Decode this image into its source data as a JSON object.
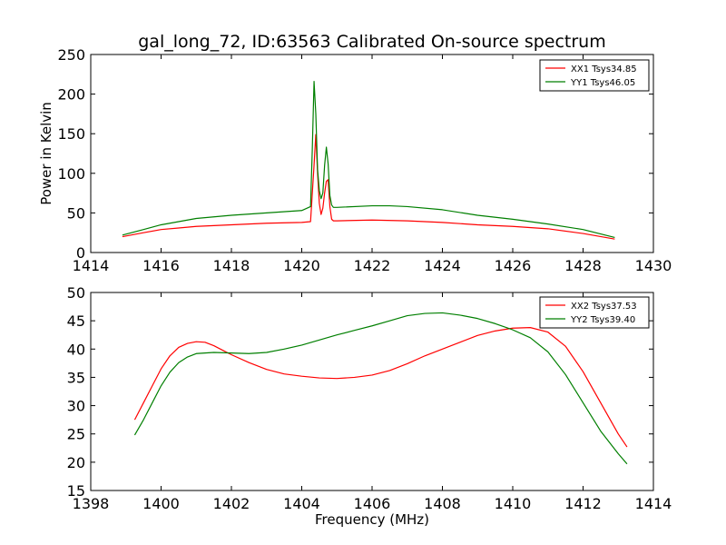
{
  "title": "gal_long_72, ID:63563 Calibrated On-source spectrum",
  "colors": {
    "xx": "#ff0000",
    "yy": "#007f00",
    "frame": "#000000",
    "background": "#ffffff"
  },
  "chart_data": [
    {
      "type": "line",
      "title": "gal_long_72, ID:63563 Calibrated On-source spectrum",
      "xlabel": "",
      "ylabel": "Power in Kelvin",
      "xlim": [
        1414,
        1430
      ],
      "ylim": [
        0,
        250
      ],
      "xticks": [
        "1414",
        "1416",
        "1418",
        "1420",
        "1422",
        "1424",
        "1426",
        "1428",
        "1430"
      ],
      "yticks": [
        "0",
        "50",
        "100",
        "150",
        "200",
        "250"
      ],
      "grid": false,
      "legend_position": "top-right",
      "series": [
        {
          "name": "XX1 Tsys34.85",
          "color": "#ff0000",
          "x": [
            1414.9,
            1415.5,
            1416,
            1416.5,
            1417,
            1418,
            1419,
            1420,
            1420.25,
            1420.35,
            1420.4,
            1420.45,
            1420.5,
            1420.55,
            1420.6,
            1420.65,
            1420.7,
            1420.75,
            1420.8,
            1420.85,
            1420.9,
            1421,
            1422,
            1423,
            1424,
            1425,
            1426,
            1427,
            1428,
            1428.9
          ],
          "y": [
            20,
            25,
            29,
            31,
            33,
            35,
            37,
            38,
            39,
            110,
            149,
            100,
            62,
            48,
            56,
            75,
            90,
            92,
            58,
            42,
            40,
            40,
            41,
            40,
            38,
            35,
            33,
            30,
            24,
            17
          ]
        },
        {
          "name": "YY1 Tsys46.05",
          "color": "#007f00",
          "x": [
            1414.9,
            1415.5,
            1416,
            1416.5,
            1417,
            1418,
            1419,
            1420,
            1420.25,
            1420.3,
            1420.35,
            1420.4,
            1420.45,
            1420.5,
            1420.55,
            1420.6,
            1420.65,
            1420.7,
            1420.75,
            1420.8,
            1420.85,
            1420.9,
            1421,
            1422,
            1422.5,
            1423,
            1424,
            1425,
            1426,
            1427,
            1428,
            1428.9
          ],
          "y": [
            22,
            29,
            35,
            39,
            43,
            47,
            50,
            53,
            58,
            130,
            216,
            175,
            105,
            78,
            68,
            75,
            110,
            133,
            112,
            72,
            60,
            57,
            57,
            59,
            59,
            58,
            54,
            47,
            42,
            36,
            29,
            19
          ]
        }
      ]
    },
    {
      "type": "line",
      "title": "",
      "xlabel": "Frequency (MHz)",
      "ylabel": "",
      "xlim": [
        1398,
        1414
      ],
      "ylim": [
        15,
        50
      ],
      "xticks": [
        "1398",
        "1400",
        "1402",
        "1404",
        "1406",
        "1408",
        "1410",
        "1412",
        "1414"
      ],
      "yticks": [
        "15",
        "20",
        "25",
        "30",
        "35",
        "40",
        "45",
        "50"
      ],
      "grid": false,
      "legend_position": "top-right",
      "series": [
        {
          "name": "XX2 Tsys37.53",
          "color": "#ff0000",
          "x": [
            1399.25,
            1399.5,
            1399.75,
            1400,
            1400.25,
            1400.5,
            1400.75,
            1401,
            1401.25,
            1401.5,
            1401.75,
            1402,
            1402.5,
            1403,
            1403.5,
            1404,
            1404.5,
            1405,
            1405.5,
            1406,
            1406.5,
            1407,
            1407.5,
            1408,
            1408.5,
            1409,
            1409.5,
            1410,
            1410.5,
            1411,
            1411.5,
            1412,
            1412.5,
            1413,
            1413.25
          ],
          "y": [
            27.5,
            30.5,
            33.5,
            36.5,
            38.8,
            40.3,
            41.0,
            41.3,
            41.2,
            40.6,
            39.8,
            39.0,
            37.6,
            36.4,
            35.6,
            35.2,
            34.9,
            34.8,
            35.0,
            35.4,
            36.2,
            37.4,
            38.8,
            40.0,
            41.2,
            42.4,
            43.2,
            43.7,
            43.8,
            43.0,
            40.5,
            36.0,
            30.5,
            25.0,
            22.7
          ]
        },
        {
          "name": "YY2 Tsys39.40",
          "color": "#007f00",
          "x": [
            1399.25,
            1399.5,
            1399.75,
            1400,
            1400.25,
            1400.5,
            1400.75,
            1401,
            1401.5,
            1402,
            1402.5,
            1403,
            1403.5,
            1404,
            1404.5,
            1405,
            1405.5,
            1406,
            1406.5,
            1407,
            1407.5,
            1408,
            1408.5,
            1409,
            1409.5,
            1410,
            1410.5,
            1411,
            1411.5,
            1412,
            1412.5,
            1413,
            1413.25
          ],
          "y": [
            24.8,
            27.5,
            30.5,
            33.5,
            35.9,
            37.6,
            38.6,
            39.2,
            39.4,
            39.3,
            39.2,
            39.4,
            40.0,
            40.7,
            41.6,
            42.5,
            43.3,
            44.1,
            45.0,
            45.9,
            46.3,
            46.4,
            46.0,
            45.4,
            44.5,
            43.4,
            42.0,
            39.5,
            35.5,
            30.5,
            25.5,
            21.5,
            19.7
          ]
        }
      ]
    }
  ]
}
